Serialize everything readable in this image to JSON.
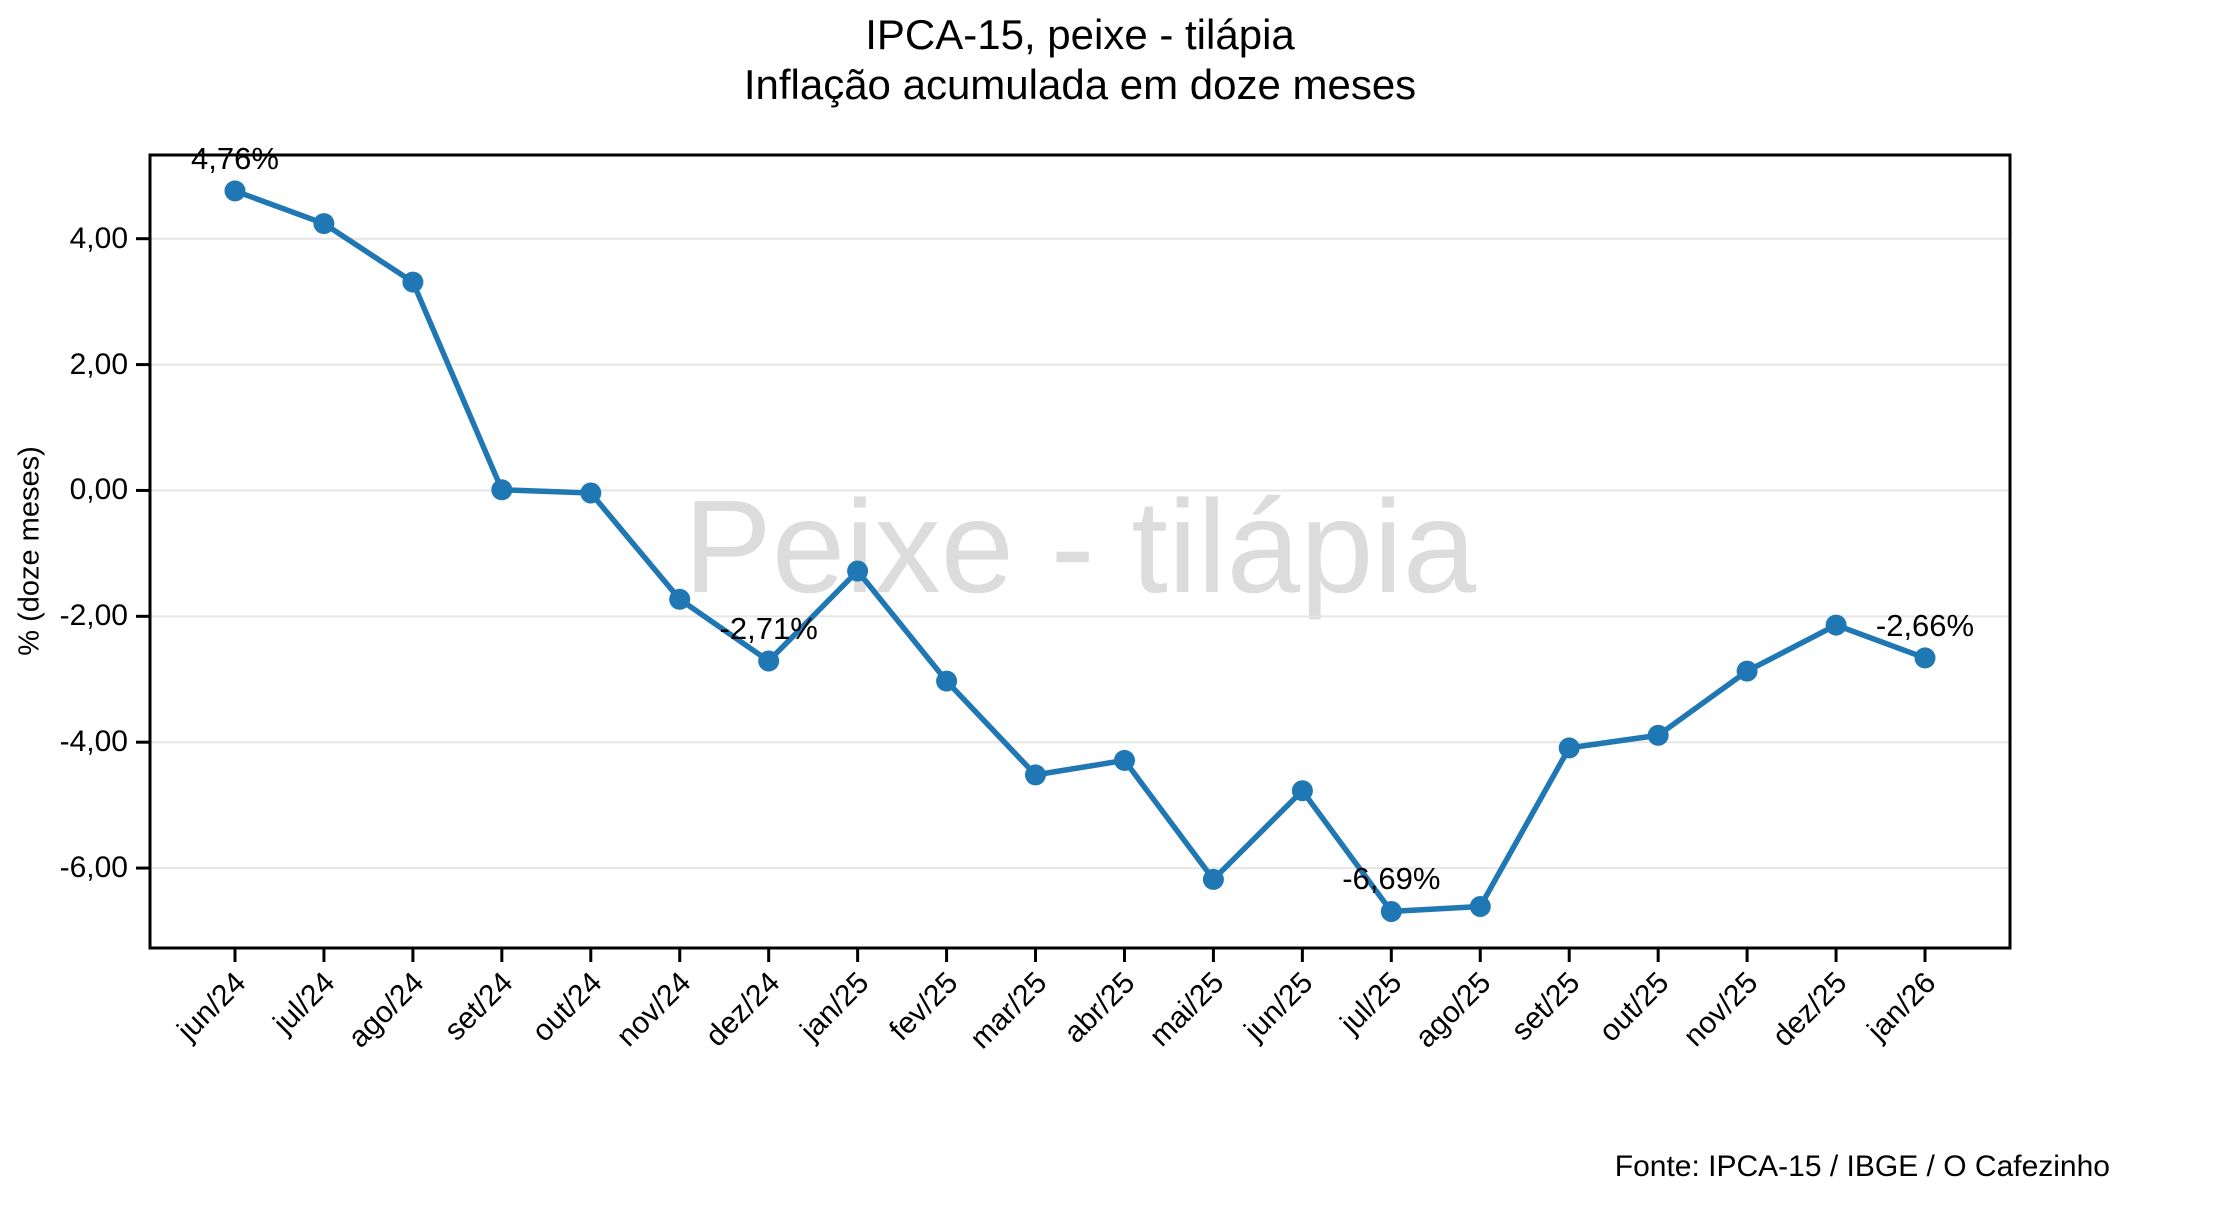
{
  "title": {
    "line1": "IPCA-15, peixe - tilápia",
    "line2": "Inflação acumulada em doze meses"
  },
  "watermark": "Peixe - tilápia",
  "source": "Fonte: IPCA-15 / IBGE / O Cafezinho",
  "chart_data": {
    "type": "line",
    "title": "IPCA-15, peixe - tilápia\nInflação acumulada em doze meses",
    "xlabel": "",
    "ylabel": "% (doze meses)",
    "categories": [
      "jun/24",
      "jul/24",
      "ago/24",
      "set/24",
      "out/24",
      "nov/24",
      "dez/24",
      "jan/25",
      "fev/25",
      "mar/25",
      "abr/25",
      "mai/25",
      "jun/25",
      "jul/25",
      "ago/25",
      "set/25",
      "out/25",
      "nov/25",
      "dez/25",
      "jan/26"
    ],
    "values": [
      4.76,
      4.24,
      3.31,
      0.01,
      -0.04,
      -1.73,
      -2.71,
      -1.28,
      -3.03,
      -4.52,
      -4.29,
      -6.18,
      -4.77,
      -6.69,
      -6.61,
      -4.09,
      -3.89,
      -2.87,
      -2.14,
      -2.66
    ],
    "ylim": [
      -7.27,
      5.33
    ],
    "yticks": [
      {
        "value": 4,
        "label": "4,00"
      },
      {
        "value": 2,
        "label": "2,00"
      },
      {
        "value": 0,
        "label": "0,00"
      },
      {
        "value": -2,
        "label": "-2,00"
      },
      {
        "value": -4,
        "label": "-4,00"
      },
      {
        "value": -6,
        "label": "-6,00"
      }
    ],
    "grid": "horizontal",
    "legend": "none",
    "line_color": "#1f77b4",
    "marker": "circle",
    "annotations": [
      {
        "index": 0,
        "label": "4,76%"
      },
      {
        "index": 6,
        "label": "-2,71%"
      },
      {
        "index": 13,
        "label": "-6,69%"
      },
      {
        "index": 19,
        "label": "-2,66%"
      }
    ]
  }
}
